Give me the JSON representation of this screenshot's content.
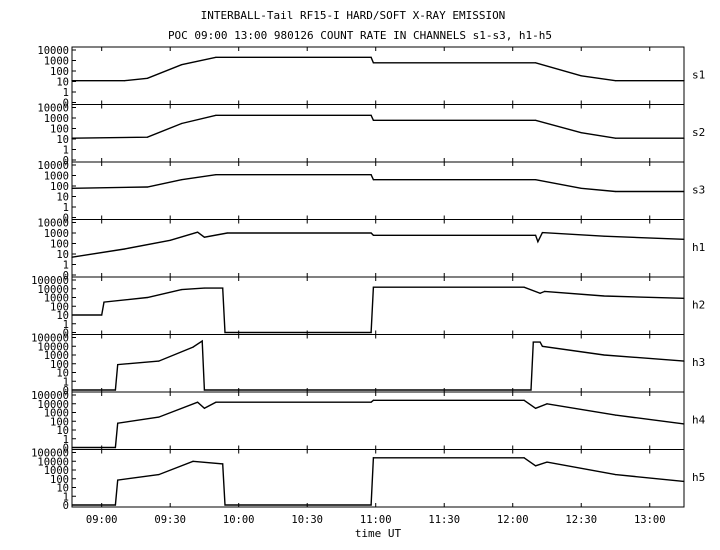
{
  "figure": {
    "title_line1": "INTERBALL-Tail RF15-I HARD/SOFT X-RAY EMISSION",
    "title_line2": "POC 09:00 13:00 980126  COUNT RATE IN CHANNELS s1-s3, h1-h5",
    "xlabel": "time UT",
    "x_ticks": [
      "09:00",
      "09:30",
      "10:00",
      "10:30",
      "11:00",
      "11:30",
      "12:00",
      "12:30",
      "13:00"
    ]
  },
  "chart_data": [
    {
      "type": "line",
      "panel": "s1",
      "ylabel": "s1",
      "ylim": [
        0,
        10000
      ],
      "y_ticks": [
        "10000",
        "1000",
        "100",
        "10",
        "1",
        "0"
      ],
      "series": [
        {
          "values": [
            {
              "t": "08:47",
              "y": 12
            },
            {
              "t": "09:10",
              "y": 12
            },
            {
              "t": "09:20",
              "y": 20
            },
            {
              "t": "09:35",
              "y": 400
            },
            {
              "t": "09:50",
              "y": 2000
            },
            {
              "t": "10:58",
              "y": 2000
            },
            {
              "t": "10:59",
              "y": 600
            },
            {
              "t": "12:10",
              "y": 600
            },
            {
              "t": "12:30",
              "y": 35
            },
            {
              "t": "12:45",
              "y": 12
            },
            {
              "t": "13:15",
              "y": 12
            }
          ]
        }
      ]
    },
    {
      "type": "line",
      "panel": "s2",
      "ylabel": "s2",
      "ylim": [
        0,
        10000
      ],
      "y_ticks": [
        "10000",
        "1000",
        "100",
        "10",
        "1",
        "0"
      ],
      "series": [
        {
          "values": [
            {
              "t": "08:47",
              "y": 12
            },
            {
              "t": "09:20",
              "y": 15
            },
            {
              "t": "09:35",
              "y": 300
            },
            {
              "t": "09:50",
              "y": 1800
            },
            {
              "t": "10:58",
              "y": 1800
            },
            {
              "t": "10:59",
              "y": 600
            },
            {
              "t": "12:10",
              "y": 600
            },
            {
              "t": "12:30",
              "y": 40
            },
            {
              "t": "12:45",
              "y": 12
            },
            {
              "t": "13:15",
              "y": 12
            }
          ]
        }
      ]
    },
    {
      "type": "line",
      "panel": "s3",
      "ylabel": "s3",
      "ylim": [
        0,
        10000
      ],
      "y_ticks": [
        "10000",
        "1000",
        "100",
        "10",
        "1",
        "0"
      ],
      "series": [
        {
          "values": [
            {
              "t": "08:47",
              "y": 60
            },
            {
              "t": "09:20",
              "y": 80
            },
            {
              "t": "09:35",
              "y": 400
            },
            {
              "t": "09:50",
              "y": 1200
            },
            {
              "t": "10:58",
              "y": 1200
            },
            {
              "t": "10:59",
              "y": 400
            },
            {
              "t": "12:10",
              "y": 400
            },
            {
              "t": "12:30",
              "y": 60
            },
            {
              "t": "12:45",
              "y": 30
            },
            {
              "t": "13:15",
              "y": 30
            }
          ]
        }
      ]
    },
    {
      "type": "line",
      "panel": "h1",
      "ylabel": "h1",
      "ylim": [
        0,
        10000
      ],
      "y_ticks": [
        "10000",
        "1000",
        "100",
        "10",
        "1",
        "0"
      ],
      "series": [
        {
          "values": [
            {
              "t": "08:47",
              "y": 5
            },
            {
              "t": "09:10",
              "y": 30
            },
            {
              "t": "09:30",
              "y": 200
            },
            {
              "t": "09:42",
              "y": 1200
            },
            {
              "t": "09:45",
              "y": 400
            },
            {
              "t": "09:55",
              "y": 1000
            },
            {
              "t": "10:58",
              "y": 1000
            },
            {
              "t": "10:59",
              "y": 600
            },
            {
              "t": "12:10",
              "y": 600
            },
            {
              "t": "12:11",
              "y": 150
            },
            {
              "t": "12:13",
              "y": 1100
            },
            {
              "t": "12:40",
              "y": 500
            },
            {
              "t": "13:15",
              "y": 250
            }
          ]
        }
      ]
    },
    {
      "type": "line",
      "panel": "h2",
      "ylabel": "h2",
      "ylim": [
        0,
        100000
      ],
      "y_ticks": [
        "100000",
        "10000",
        "1000",
        "100",
        "10",
        "1",
        "0"
      ],
      "series": [
        {
          "values": [
            {
              "t": "08:47",
              "y": 10
            },
            {
              "t": "09:00",
              "y": 10
            },
            {
              "t": "09:01",
              "y": 300
            },
            {
              "t": "09:20",
              "y": 1000
            },
            {
              "t": "09:35",
              "y": 8000
            },
            {
              "t": "09:45",
              "y": 12000
            },
            {
              "t": "09:53",
              "y": 12000
            },
            {
              "t": "09:54",
              "y": 0
            },
            {
              "t": "10:58",
              "y": 0
            },
            {
              "t": "10:59",
              "y": 15000
            },
            {
              "t": "12:05",
              "y": 15000
            },
            {
              "t": "12:12",
              "y": 3000
            },
            {
              "t": "12:14",
              "y": 5000
            },
            {
              "t": "12:40",
              "y": 1500
            },
            {
              "t": "13:15",
              "y": 800
            }
          ]
        }
      ]
    },
    {
      "type": "line",
      "panel": "h3",
      "ylabel": "h3",
      "ylim": [
        0,
        100000
      ],
      "y_ticks": [
        "100000",
        "10000",
        "1000",
        "100",
        "10",
        "1",
        "0"
      ],
      "series": [
        {
          "values": [
            {
              "t": "08:47",
              "y": 0
            },
            {
              "t": "09:06",
              "y": 0
            },
            {
              "t": "09:07",
              "y": 80
            },
            {
              "t": "09:25",
              "y": 200
            },
            {
              "t": "09:40",
              "y": 8000
            },
            {
              "t": "09:44",
              "y": 40000
            },
            {
              "t": "09:45",
              "y": 0
            },
            {
              "t": "12:08",
              "y": 0
            },
            {
              "t": "12:09",
              "y": 30000
            },
            {
              "t": "12:12",
              "y": 30000
            },
            {
              "t": "12:13",
              "y": 10000
            },
            {
              "t": "12:40",
              "y": 1000
            },
            {
              "t": "13:15",
              "y": 200
            }
          ]
        }
      ]
    },
    {
      "type": "line",
      "panel": "h4",
      "ylabel": "h4",
      "ylim": [
        0,
        100000
      ],
      "y_ticks": [
        "100000",
        "10000",
        "1000",
        "100",
        "10",
        "1",
        "0"
      ],
      "series": [
        {
          "values": [
            {
              "t": "08:47",
              "y": 0
            },
            {
              "t": "09:06",
              "y": 0
            },
            {
              "t": "09:07",
              "y": 60
            },
            {
              "t": "09:25",
              "y": 300
            },
            {
              "t": "09:42",
              "y": 15000
            },
            {
              "t": "09:45",
              "y": 3000
            },
            {
              "t": "09:50",
              "y": 15000
            },
            {
              "t": "10:58",
              "y": 15000
            },
            {
              "t": "10:59",
              "y": 25000
            },
            {
              "t": "12:05",
              "y": 25000
            },
            {
              "t": "12:10",
              "y": 3000
            },
            {
              "t": "12:15",
              "y": 10000
            },
            {
              "t": "12:45",
              "y": 500
            },
            {
              "t": "13:15",
              "y": 50
            }
          ]
        }
      ]
    },
    {
      "type": "line",
      "panel": "h5",
      "ylabel": "h5",
      "ylim": [
        0,
        100000
      ],
      "y_ticks": [
        "100000",
        "10000",
        "1000",
        "100",
        "10",
        "1",
        "0"
      ],
      "series": [
        {
          "values": [
            {
              "t": "08:47",
              "y": 0
            },
            {
              "t": "09:06",
              "y": 0
            },
            {
              "t": "09:07",
              "y": 70
            },
            {
              "t": "09:25",
              "y": 300
            },
            {
              "t": "09:40",
              "y": 10000
            },
            {
              "t": "09:53",
              "y": 5000
            },
            {
              "t": "09:54",
              "y": 0
            },
            {
              "t": "10:58",
              "y": 0
            },
            {
              "t": "10:59",
              "y": 25000
            },
            {
              "t": "12:05",
              "y": 25000
            },
            {
              "t": "12:10",
              "y": 3000
            },
            {
              "t": "12:15",
              "y": 8000
            },
            {
              "t": "12:45",
              "y": 300
            },
            {
              "t": "13:15",
              "y": 50
            }
          ]
        }
      ]
    }
  ]
}
